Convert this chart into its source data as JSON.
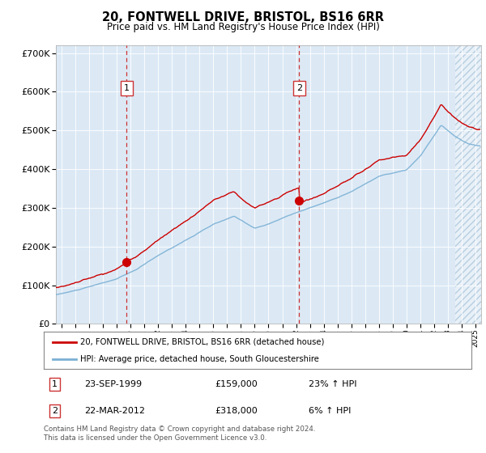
{
  "title": "20, FONTWELL DRIVE, BRISTOL, BS16 6RR",
  "subtitle": "Price paid vs. HM Land Registry's House Price Index (HPI)",
  "ylim": [
    0,
    720000
  ],
  "yticks": [
    0,
    100000,
    200000,
    300000,
    400000,
    500000,
    600000,
    700000
  ],
  "ytick_labels": [
    "£0",
    "£100K",
    "£200K",
    "£300K",
    "£400K",
    "£500K",
    "£600K",
    "£700K"
  ],
  "bg_color": "#dce9f5",
  "hatch_color": "#b8cfe0",
  "red_color": "#cc0000",
  "blue_color": "#7ab0d4",
  "dashed_red": "#cc3333",
  "purchase1_date": 1999.73,
  "purchase1_price": 159000,
  "purchase2_date": 2012.22,
  "purchase2_price": 318000,
  "legend_red": "20, FONTWELL DRIVE, BRISTOL, BS16 6RR (detached house)",
  "legend_blue": "HPI: Average price, detached house, South Gloucestershire",
  "annotation1_date": "23-SEP-1999",
  "annotation1_price": "£159,000",
  "annotation1_hpi": "23% ↑ HPI",
  "annotation2_date": "22-MAR-2012",
  "annotation2_price": "£318,000",
  "annotation2_hpi": "6% ↑ HPI",
  "footnote": "Contains HM Land Registry data © Crown copyright and database right 2024.\nThis data is licensed under the Open Government Licence v3.0.",
  "xmin": 1994.6,
  "xmax": 2025.4,
  "hatch_start": 2023.5
}
